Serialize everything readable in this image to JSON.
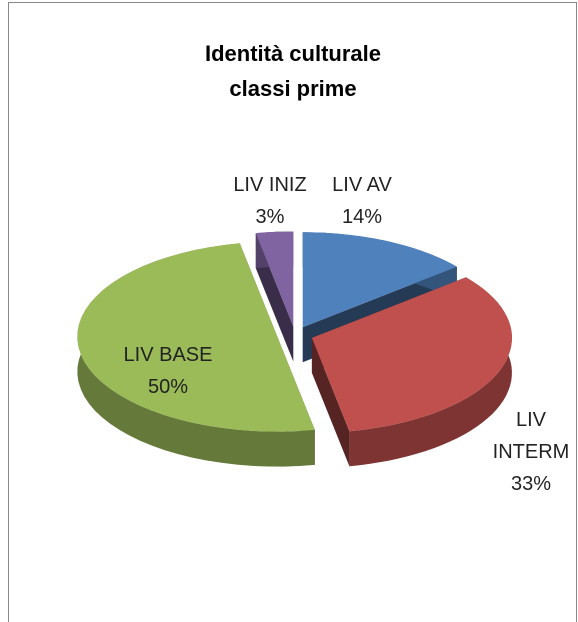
{
  "chart_data": {
    "type": "pie3d",
    "title": "Identità culturale\nclassi prime",
    "categories": [
      "LIV AV",
      "LIV INTERM",
      "LIV BASE",
      "LIV INIZ"
    ],
    "values": [
      14,
      33,
      50,
      3
    ],
    "value_labels": [
      "14%",
      "33%",
      "50%",
      "3%"
    ],
    "colors": [
      "#4f81bd",
      "#c0504d",
      "#9bbb59",
      "#8064a2"
    ]
  }
}
